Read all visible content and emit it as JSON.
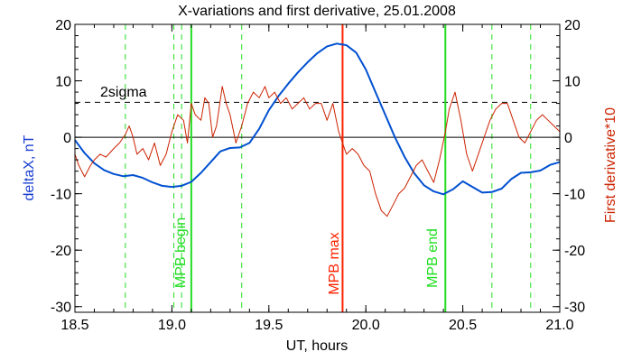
{
  "chart_data": {
    "type": "line",
    "title": "X-variations and first derivative, 25.01.2008",
    "xlabel": "UT, hours",
    "ylabel_left": "deltaX, nT",
    "ylabel_right": "First derivative*10",
    "xlim": [
      18.5,
      21.0
    ],
    "ylim_left": [
      -31,
      20
    ],
    "ylim_right": [
      -31,
      20
    ],
    "x_ticks": [
      {
        "value": 18.5,
        "label": "18.5"
      },
      {
        "value": 19.0,
        "label": "19.0"
      },
      {
        "value": 19.5,
        "label": "19.5"
      },
      {
        "value": 20.0,
        "label": "20.0"
      },
      {
        "value": 20.5,
        "label": "20.5"
      },
      {
        "value": 21.0,
        "label": "21.0"
      }
    ],
    "y_ticks": [
      {
        "value": 20,
        "label": "20"
      },
      {
        "value": 10,
        "label": "10"
      },
      {
        "value": 0,
        "label": "0"
      },
      {
        "value": -10,
        "label": "-10"
      },
      {
        "value": -20,
        "label": "-20"
      },
      {
        "value": -30,
        "label": "-30"
      }
    ],
    "grid": false,
    "colors": {
      "deltaX": "#0050d0",
      "derivative": "#cc2200",
      "mpb_boundary": "#22dd22",
      "mpb_max": "#ff2200",
      "sigma": "#000000",
      "zero": "#000000"
    },
    "series": [
      {
        "name": "deltaX, nT",
        "axis": "left",
        "x": [
          18.5,
          18.55,
          18.6,
          18.65,
          18.7,
          18.75,
          18.8,
          18.85,
          18.9,
          18.95,
          19.0,
          19.05,
          19.1,
          19.15,
          19.2,
          19.25,
          19.3,
          19.35,
          19.4,
          19.45,
          19.5,
          19.55,
          19.6,
          19.65,
          19.7,
          19.75,
          19.8,
          19.85,
          19.9,
          19.95,
          20.0,
          20.05,
          20.1,
          20.15,
          20.2,
          20.25,
          20.3,
          20.35,
          20.4,
          20.45,
          20.5,
          20.55,
          20.6,
          20.65,
          20.7,
          20.75,
          20.8,
          20.85,
          20.9,
          20.95,
          21.0
        ],
        "values": [
          -0.5,
          -2.8,
          -4.6,
          -5.8,
          -6.5,
          -6.9,
          -6.7,
          -7.2,
          -8.0,
          -8.6,
          -8.8,
          -8.6,
          -7.9,
          -6.3,
          -4.4,
          -2.5,
          -1.9,
          -1.8,
          -1.0,
          1.5,
          4.8,
          7.3,
          9.5,
          11.5,
          13.3,
          14.9,
          16.1,
          16.6,
          16.3,
          15.0,
          12.0,
          8.0,
          4.0,
          0.0,
          -3.5,
          -6.4,
          -8.5,
          -9.6,
          -10.1,
          -9.2,
          -7.8,
          -8.8,
          -9.8,
          -9.7,
          -9.1,
          -7.4,
          -6.3,
          -6.2,
          -5.9,
          -4.9,
          -4.4
        ]
      },
      {
        "name": "First derivative*10",
        "axis": "right",
        "x": [
          18.5,
          18.52,
          18.55,
          18.58,
          18.6,
          18.63,
          18.66,
          18.7,
          18.73,
          18.76,
          18.78,
          18.8,
          18.82,
          18.85,
          18.88,
          18.91,
          18.94,
          18.97,
          19.0,
          19.03,
          19.06,
          19.08,
          19.1,
          19.12,
          19.15,
          19.17,
          19.19,
          19.21,
          19.23,
          19.26,
          19.28,
          19.3,
          19.33,
          19.36,
          19.39,
          19.42,
          19.45,
          19.48,
          19.5,
          19.53,
          19.56,
          19.59,
          19.62,
          19.65,
          19.68,
          19.71,
          19.74,
          19.77,
          19.8,
          19.83,
          19.86,
          19.88,
          19.9,
          19.93,
          19.96,
          19.99,
          20.02,
          20.05,
          20.08,
          20.11,
          20.14,
          20.17,
          20.2,
          20.23,
          20.26,
          20.29,
          20.32,
          20.35,
          20.38,
          20.41,
          20.43,
          20.46,
          20.49,
          20.52,
          20.55,
          20.58,
          20.61,
          20.64,
          20.67,
          20.7,
          20.73,
          20.76,
          20.79,
          20.82,
          20.85,
          20.88,
          20.91,
          20.94,
          20.97,
          21.0
        ],
        "values": [
          -3,
          -5,
          -7,
          -5,
          -4,
          -3,
          -3.5,
          -2,
          -1,
          0.5,
          2,
          0,
          -3,
          -2,
          -4,
          -1,
          -5,
          -3,
          1,
          4,
          3,
          -1,
          6,
          4,
          3,
          7,
          6,
          0,
          2,
          9,
          6,
          4,
          -1,
          2,
          6,
          8,
          7,
          9,
          7,
          8,
          6,
          7,
          5,
          6,
          7,
          5,
          6,
          6,
          3,
          6,
          1,
          -1,
          -3,
          -2,
          -3,
          -5,
          -6,
          -10,
          -13,
          -14,
          -12,
          -10,
          -9,
          -7,
          -5,
          -4,
          -6,
          -8,
          -4,
          1,
          5,
          8,
          3,
          -3,
          -6,
          -3,
          0,
          3,
          5,
          6,
          6,
          3,
          0,
          -1,
          1,
          3,
          4,
          3,
          2,
          1
        ]
      }
    ],
    "reference_lines": {
      "sigma_level": 6.2,
      "sigma_label": "2sigma",
      "zero_level": 0,
      "dashed_times": [
        18.76,
        19.01,
        19.05,
        19.36,
        20.65,
        20.85
      ],
      "mpb_begin": {
        "x": 19.1,
        "label": "MPB begin"
      },
      "mpb_max": {
        "x": 19.88,
        "label": "MPB max"
      },
      "mpb_end": {
        "x": 20.41,
        "label": "MPB end"
      }
    }
  }
}
